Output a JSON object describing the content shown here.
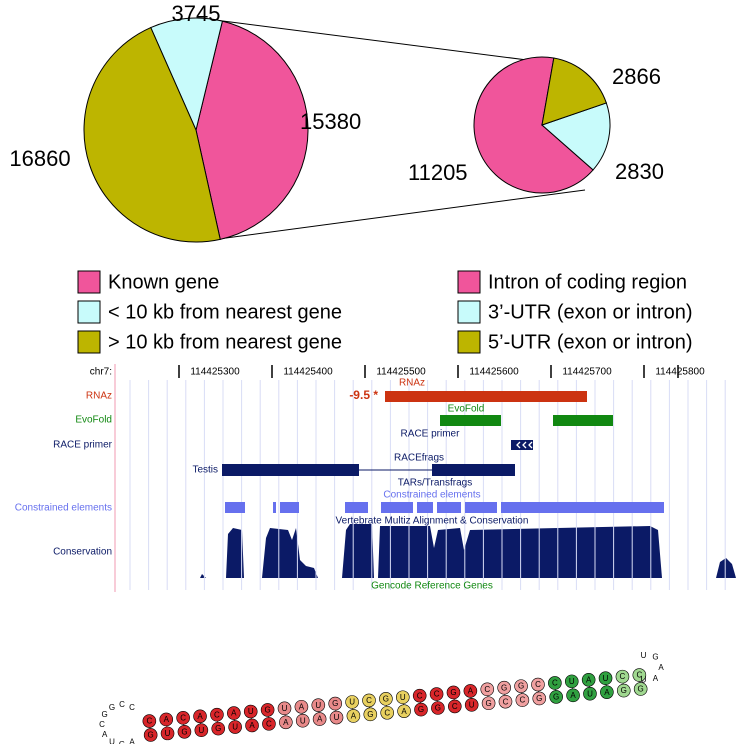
{
  "chart_data": [
    {
      "type": "pie",
      "categories": [
        "Known gene",
        "< 10 kb from nearest gene",
        "> 10 kb from nearest gene"
      ],
      "values": [
        15380,
        3745,
        16860
      ],
      "colors": [
        "#f0559b",
        "#c8fbfb",
        "#bdb500"
      ]
    },
    {
      "type": "pie",
      "categories": [
        "Intron of coding region",
        "3’-UTR (exon or intron)",
        "5’-UTR (exon or intron)"
      ],
      "values": [
        11205,
        2830,
        2866
      ],
      "colors": [
        "#f0559b",
        "#c8fbfb",
        "#bdb500"
      ]
    }
  ],
  "browser": {
    "position_label": "chr7:",
    "ticks": [
      114425300,
      114425400,
      114425500,
      114425600,
      114425700,
      114425800
    ],
    "track_labels": [
      {
        "text": "RNAz",
        "color": "#cc3311"
      },
      {
        "text": "EvoFold",
        "color": "#118811"
      },
      {
        "text": "RACE primer",
        "color": "#0b1a66"
      },
      {
        "text": "Constrained elements",
        "color": "#6670ee"
      },
      {
        "text": "Conservation",
        "color": "#0b1a66"
      }
    ],
    "center_labels": [
      {
        "text": "RNAz",
        "color": "#cc3311"
      },
      {
        "text": "EvoFold",
        "color": "#118811"
      },
      {
        "text": "RACE primer",
        "color": "#0b1a66"
      },
      {
        "text": "RACEfrags",
        "color": "#0b1a66"
      },
      {
        "text": "TARs/Transfrags",
        "color": "#0b1a66"
      },
      {
        "text": "Constrained elements",
        "color": "#6670ee"
      },
      {
        "text": "Vertebrate Multiz Alignment & Conservation",
        "color": "#0b1a66"
      },
      {
        "text": "Gencode Reference Genes",
        "color": "#118811"
      }
    ],
    "score": "-9.5 *",
    "tissue": "Testis"
  },
  "rna": {
    "top": "CACACAUGUAUGUCGUCCGACGGCCUAUCC",
    "bottom": "GUGUGUACAUAUAGCAGGCUGCCGGAUAGG",
    "left_loop": "CCGGCAUGA",
    "right_loop": "UAAGU"
  }
}
